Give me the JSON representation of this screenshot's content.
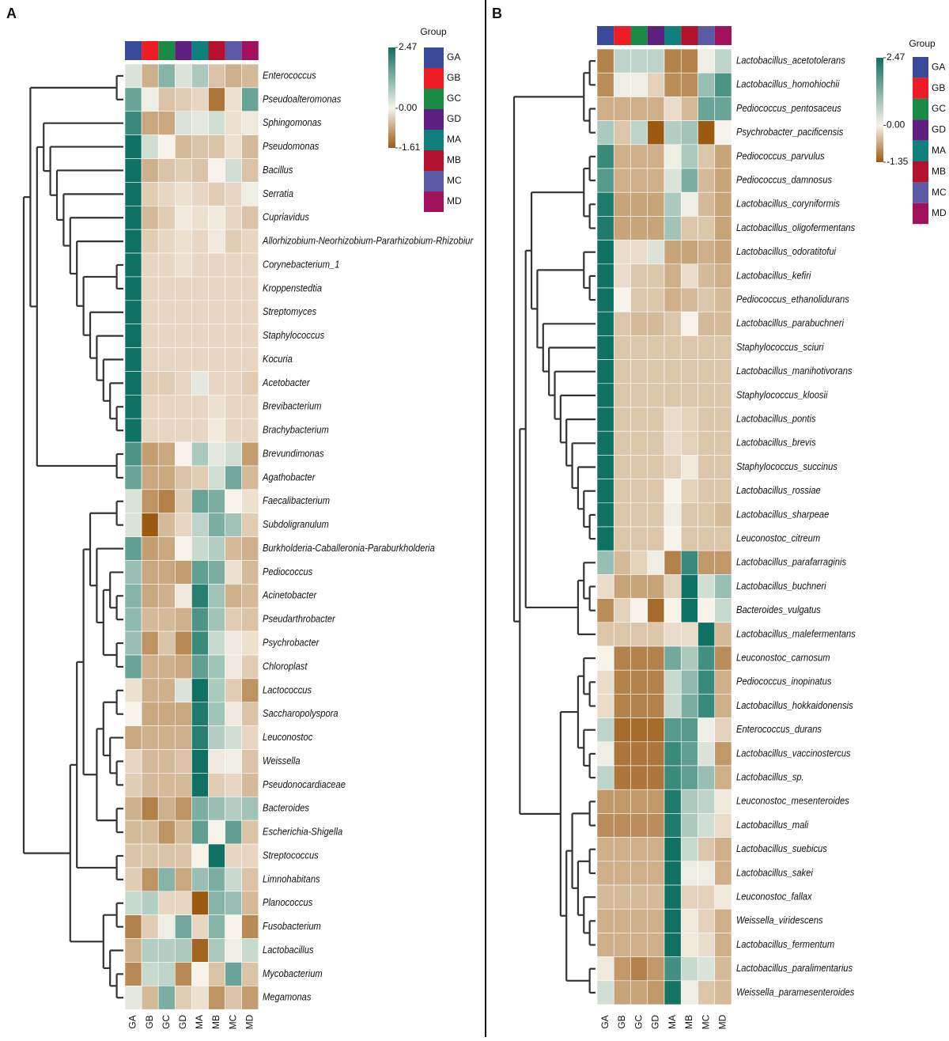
{
  "chart_data": [
    {
      "type": "heatmap",
      "panel_label": "A",
      "legend_title": "Group",
      "categories": [
        "GA",
        "GB",
        "GC",
        "GD",
        "MA",
        "MB",
        "MC",
        "MD"
      ],
      "category_colors": [
        "#3a4a9b",
        "#ee1c25",
        "#1a8a46",
        "#5d1f80",
        "#0f807b",
        "#b3122e",
        "#5b5aa6",
        "#a0125c"
      ],
      "zlim": [
        -1.61,
        2.47
      ],
      "zticks": [
        2.47,
        {
          "value": 0,
          "label": "0.00"
        },
        -1.61
      ],
      "rows": [
        "Enterococcus",
        "Pseudoalteromonas",
        "Sphingomonas",
        "Pseudomonas",
        "Bacillus",
        "Serratia",
        "Cupriavidus",
        "Allorhizobium-Neorhizobium-Pararhizobium-Rhizobiur",
        "Corynebacterium_1",
        "Kroppenstedtia",
        "Streptomyces",
        "Staphylococcus",
        "Kocuria",
        "Acetobacter",
        "Brevibacterium",
        "Brachybacterium",
        "Brevundimonas",
        "Agathobacter",
        "Faecalibacterium",
        "Subdoligranulum",
        "Burkholderia-Caballeronia-Paraburkholderia",
        "Pediococcus",
        "Acinetobacter",
        "Pseudarthrobacter",
        "Psychrobacter",
        "Chloroplast",
        "Lactococcus",
        "Saccharopolyspora",
        "Leuconostoc",
        "Weissella",
        "Pseudonocardiaceae",
        "Bacteroides",
        "Escherichia-Shigella",
        "Streptococcus",
        "Limnohabitans",
        "Planococcus",
        "Fusobacterium",
        "Lactobacillus",
        "Mycobacterium",
        "Megamonas"
      ],
      "values": [
        [
          0.3,
          -0.7,
          1.2,
          0.3,
          0.8,
          -0.5,
          -0.7,
          -0.6
        ],
        [
          1.5,
          0.1,
          -0.5,
          -0.4,
          -0.3,
          -1.3,
          -0.2,
          1.5
        ],
        [
          2.0,
          -0.8,
          -0.8,
          0.3,
          0.2,
          0.4,
          -0.2,
          -0.1
        ],
        [
          2.47,
          0.4,
          0.0,
          -0.6,
          -0.5,
          -0.5,
          -0.2,
          -0.6
        ],
        [
          2.47,
          -0.7,
          -0.5,
          -0.4,
          -0.5,
          0.0,
          0.4,
          -0.5
        ],
        [
          2.47,
          -0.4,
          -0.3,
          -0.2,
          -0.3,
          -0.4,
          -0.3,
          0.1
        ],
        [
          2.47,
          -0.6,
          -0.4,
          -0.1,
          -0.2,
          -0.1,
          -0.3,
          -0.5
        ],
        [
          2.47,
          -0.4,
          -0.3,
          -0.2,
          -0.3,
          -0.1,
          -0.4,
          -0.3
        ],
        [
          2.47,
          -0.3,
          -0.3,
          -0.2,
          -0.3,
          -0.3,
          -0.3,
          -0.3
        ],
        [
          2.47,
          -0.3,
          -0.3,
          -0.3,
          -0.3,
          -0.3,
          -0.3,
          -0.3
        ],
        [
          2.47,
          -0.3,
          -0.3,
          -0.3,
          -0.3,
          -0.3,
          -0.3,
          -0.3
        ],
        [
          2.47,
          -0.3,
          -0.3,
          -0.3,
          -0.3,
          -0.3,
          -0.3,
          -0.3
        ],
        [
          2.47,
          -0.3,
          -0.3,
          -0.3,
          -0.3,
          -0.3,
          -0.3,
          -0.3
        ],
        [
          2.47,
          -0.4,
          -0.4,
          -0.3,
          0.2,
          -0.3,
          -0.3,
          -0.4
        ],
        [
          2.47,
          -0.3,
          -0.3,
          -0.3,
          -0.3,
          -0.2,
          -0.3,
          -0.3
        ],
        [
          2.47,
          -0.3,
          -0.3,
          -0.3,
          -0.3,
          -0.1,
          -0.3,
          -0.3
        ],
        [
          1.8,
          -0.9,
          -0.8,
          0.0,
          0.8,
          0.2,
          0.4,
          -0.9
        ],
        [
          1.5,
          -0.8,
          -0.8,
          -0.5,
          -0.4,
          0.4,
          1.4,
          -0.6
        ],
        [
          0.3,
          -1.0,
          -1.2,
          -0.4,
          1.5,
          1.3,
          0.0,
          -0.2
        ],
        [
          0.3,
          -1.61,
          -0.6,
          -0.3,
          0.6,
          1.3,
          0.9,
          -0.4
        ],
        [
          1.6,
          -0.9,
          -0.8,
          0.0,
          0.5,
          0.7,
          -0.6,
          -0.7
        ],
        [
          1.0,
          -0.8,
          -0.8,
          -0.9,
          1.6,
          1.3,
          -0.2,
          -0.6
        ],
        [
          1.2,
          -0.8,
          -0.7,
          -0.1,
          2.2,
          0.9,
          -0.7,
          -0.6
        ],
        [
          1.1,
          -0.6,
          -0.6,
          -0.7,
          1.8,
          0.9,
          -0.4,
          -0.5
        ],
        [
          1.0,
          -1.0,
          -0.5,
          -1.1,
          2.0,
          0.5,
          -0.1,
          -0.2
        ],
        [
          1.5,
          -0.7,
          -0.7,
          -0.8,
          1.6,
          0.9,
          -0.1,
          -0.4
        ],
        [
          -0.2,
          -0.7,
          -0.7,
          0.3,
          2.47,
          0.8,
          -0.4,
          -1.0
        ],
        [
          0.0,
          -0.8,
          -0.8,
          -0.8,
          2.3,
          0.9,
          -0.1,
          -0.5
        ],
        [
          -0.8,
          -0.7,
          -0.7,
          -0.7,
          2.2,
          0.7,
          0.4,
          -0.3
        ],
        [
          -0.3,
          -0.6,
          -0.6,
          -0.5,
          2.47,
          -0.1,
          0.1,
          -0.5
        ],
        [
          -0.4,
          -0.6,
          -0.6,
          -0.6,
          2.47,
          -0.4,
          -0.3,
          -0.6
        ],
        [
          -0.7,
          -1.2,
          -0.7,
          -1.0,
          1.3,
          1.0,
          0.7,
          0.9
        ],
        [
          -0.6,
          -0.6,
          -1.0,
          -0.6,
          1.6,
          0.0,
          1.6,
          -0.5
        ],
        [
          -0.5,
          -0.5,
          -0.5,
          -0.5,
          0.0,
          2.47,
          -0.3,
          -0.3
        ],
        [
          -0.4,
          -1.0,
          1.2,
          -0.8,
          1.0,
          1.3,
          0.5,
          -0.5
        ],
        [
          0.5,
          0.7,
          -0.3,
          -0.3,
          -1.61,
          1.2,
          1.0,
          -0.6
        ],
        [
          -1.2,
          -0.4,
          0.1,
          1.4,
          -0.3,
          1.2,
          0.0,
          -1.1
        ],
        [
          -0.7,
          0.7,
          0.7,
          0.8,
          -1.5,
          0.8,
          0.1,
          0.5
        ],
        [
          -1.1,
          0.5,
          0.6,
          -1.1,
          0.0,
          -0.5,
          1.5,
          -0.5
        ],
        [
          0.2,
          -0.6,
          1.3,
          -0.4,
          -0.2,
          -1.0,
          -0.5,
          -0.9
        ]
      ]
    },
    {
      "type": "heatmap",
      "panel_label": "B",
      "legend_title": "Group",
      "categories": [
        "GA",
        "GB",
        "GC",
        "GD",
        "MA",
        "MB",
        "MC",
        "MD"
      ],
      "category_colors": [
        "#3a4a9b",
        "#ee1c25",
        "#1a8a46",
        "#5d1f80",
        "#0f807b",
        "#b3122e",
        "#5b5aa6",
        "#a0125c"
      ],
      "zlim": [
        -1.35,
        2.47
      ],
      "zticks": [
        2.47,
        {
          "value": 0,
          "label": "0.00"
        },
        -1.35
      ],
      "rows": [
        "Lactobacillus_acetotolerans",
        "Lactobacillus_homohiochii",
        "Pediococcus_pentosaceus",
        "Psychrobacter_pacificensis",
        "Pediococcus_parvulus",
        "Pediococcus_damnosus",
        "Lactobacillus_coryniformis",
        "Lactobacillus_oligofermentans",
        "Lactobacillus_odoratitofui",
        "Lactobacillus_kefiri",
        "Pediococcus_ethanolidurans",
        "Lactobacillus_parabuchneri",
        "Staphylococcus_sciuri",
        "Lactobacillus_manihotivorans",
        "Staphylococcus_kloosii",
        "Lactobacillus_pontis",
        "Lactobacillus_brevis",
        "Staphylococcus_succinus",
        "Lactobacillus_rossiae",
        "Lactobacillus_sharpeae",
        "Leuconostoc_citreum",
        "Lactobacillus_parafarraginis",
        "Lactobacillus_buchneri",
        "Bacteroides_vulgatus",
        "Lactobacillus_malefermentans",
        "Leuconostoc_carnosum",
        "Pediococcus_inopinatus",
        "Lactobacillus_hokkaidonensis",
        "Enterococcus_durans",
        "Lactobacillus_vaccinostercus",
        "Lactobacillus_sp.",
        "Leuconostoc_mesenteroides",
        "Lactobacillus_mali",
        "Lactobacillus_suebicus",
        "Lactobacillus_sakei",
        "Leuconostoc_fallax",
        "Weissella_viridescens",
        "Lactobacillus_fermentum",
        "Lactobacillus_paralimentarius",
        "Weissella_paramesenteroides"
      ],
      "values": [
        [
          -1.0,
          0.6,
          0.6,
          0.6,
          -1.0,
          -1.0,
          0.1,
          0.6
        ],
        [
          -0.9,
          0.1,
          0.1,
          -0.3,
          -0.9,
          -0.9,
          1.0,
          1.8
        ],
        [
          -0.6,
          -0.6,
          -0.6,
          -0.6,
          -0.2,
          -0.5,
          1.5,
          1.5
        ],
        [
          0.8,
          -0.4,
          0.6,
          -1.35,
          0.7,
          0.9,
          -1.35,
          0.0
        ],
        [
          2.0,
          -0.6,
          -0.6,
          -0.6,
          0.1,
          0.8,
          -0.4,
          -0.7
        ],
        [
          1.7,
          -0.6,
          -0.6,
          -0.6,
          0.3,
          1.3,
          -0.5,
          -0.7
        ],
        [
          2.3,
          -0.7,
          -0.7,
          -0.7,
          0.8,
          0.1,
          -0.5,
          -0.7
        ],
        [
          2.3,
          -0.7,
          -0.7,
          -0.7,
          0.9,
          -0.4,
          -0.4,
          -0.7
        ],
        [
          2.47,
          -0.2,
          -0.2,
          0.3,
          -0.7,
          -0.7,
          -0.6,
          -0.7
        ],
        [
          2.47,
          -0.2,
          -0.4,
          -0.4,
          -0.6,
          -0.2,
          -0.5,
          -0.6
        ],
        [
          2.47,
          0.0,
          -0.4,
          -0.4,
          -0.6,
          -0.5,
          -0.4,
          -0.5
        ],
        [
          2.47,
          -0.4,
          -0.5,
          -0.5,
          -0.4,
          0.0,
          -0.5,
          -0.5
        ],
        [
          2.47,
          -0.4,
          -0.4,
          -0.4,
          -0.4,
          -0.4,
          -0.4,
          -0.4
        ],
        [
          2.47,
          -0.4,
          -0.4,
          -0.4,
          -0.4,
          -0.4,
          -0.4,
          -0.4
        ],
        [
          2.47,
          -0.4,
          -0.4,
          -0.4,
          -0.4,
          -0.4,
          -0.4,
          -0.4
        ],
        [
          2.47,
          -0.4,
          -0.4,
          -0.4,
          -0.2,
          -0.3,
          -0.4,
          -0.4
        ],
        [
          2.47,
          -0.4,
          -0.4,
          -0.4,
          -0.2,
          -0.3,
          -0.4,
          -0.4
        ],
        [
          2.47,
          -0.4,
          -0.4,
          -0.4,
          -0.3,
          -0.1,
          -0.4,
          -0.4
        ],
        [
          2.47,
          -0.4,
          -0.4,
          -0.4,
          0.0,
          -0.3,
          -0.4,
          -0.4
        ],
        [
          2.47,
          -0.4,
          -0.4,
          -0.4,
          0.1,
          -0.4,
          -0.4,
          -0.5
        ],
        [
          2.47,
          -0.4,
          -0.4,
          -0.4,
          0.0,
          -0.4,
          -0.4,
          -0.4
        ],
        [
          1.0,
          -0.5,
          -0.3,
          0.1,
          -1.0,
          2.0,
          -0.8,
          -0.8
        ],
        [
          -0.2,
          -0.7,
          -0.7,
          -0.7,
          -0.3,
          2.47,
          0.4,
          1.0
        ],
        [
          -0.9,
          -0.3,
          0.0,
          -1.2,
          0.0,
          2.47,
          0.0,
          0.5
        ],
        [
          -0.4,
          -0.4,
          -0.4,
          -0.4,
          -0.2,
          -0.2,
          2.47,
          -0.5
        ],
        [
          0.0,
          -1.0,
          -1.0,
          -1.0,
          1.4,
          0.8,
          1.9,
          -0.9
        ],
        [
          -0.2,
          -1.0,
          -1.0,
          -1.0,
          0.5,
          1.1,
          2.0,
          -0.6
        ],
        [
          -0.2,
          -1.0,
          -1.0,
          -1.0,
          0.5,
          1.3,
          2.0,
          -0.6
        ],
        [
          0.6,
          -1.2,
          -1.2,
          -1.2,
          1.7,
          1.7,
          0.1,
          -0.3
        ],
        [
          0.1,
          -1.1,
          -1.1,
          -1.1,
          2.0,
          1.6,
          0.3,
          -0.8
        ],
        [
          0.6,
          -1.1,
          -1.1,
          -1.1,
          2.0,
          1.6,
          1.0,
          -0.6
        ],
        [
          -0.8,
          -0.8,
          -0.8,
          -0.8,
          2.3,
          0.8,
          0.6,
          -0.1
        ],
        [
          -0.9,
          -0.9,
          -0.9,
          -0.9,
          2.3,
          0.8,
          0.4,
          -0.2
        ],
        [
          -0.6,
          -0.6,
          -0.6,
          -0.6,
          2.47,
          0.5,
          -0.4,
          -0.6
        ],
        [
          -0.6,
          -0.6,
          -0.6,
          -0.6,
          2.47,
          0.1,
          0.1,
          -0.6
        ],
        [
          -0.5,
          -0.5,
          -0.5,
          -0.5,
          2.47,
          -0.3,
          -0.3,
          -0.1
        ],
        [
          -0.6,
          -0.6,
          -0.6,
          -0.6,
          2.47,
          -0.1,
          -0.3,
          -0.6
        ],
        [
          -0.6,
          -0.6,
          -0.6,
          -0.6,
          2.47,
          -0.1,
          -0.2,
          -0.6
        ],
        [
          -0.1,
          -0.8,
          -1.0,
          -0.8,
          1.9,
          0.5,
          0.3,
          -0.5
        ],
        [
          0.4,
          -0.7,
          -0.7,
          -0.8,
          2.4,
          0.1,
          -0.4,
          -0.5
        ]
      ]
    }
  ]
}
